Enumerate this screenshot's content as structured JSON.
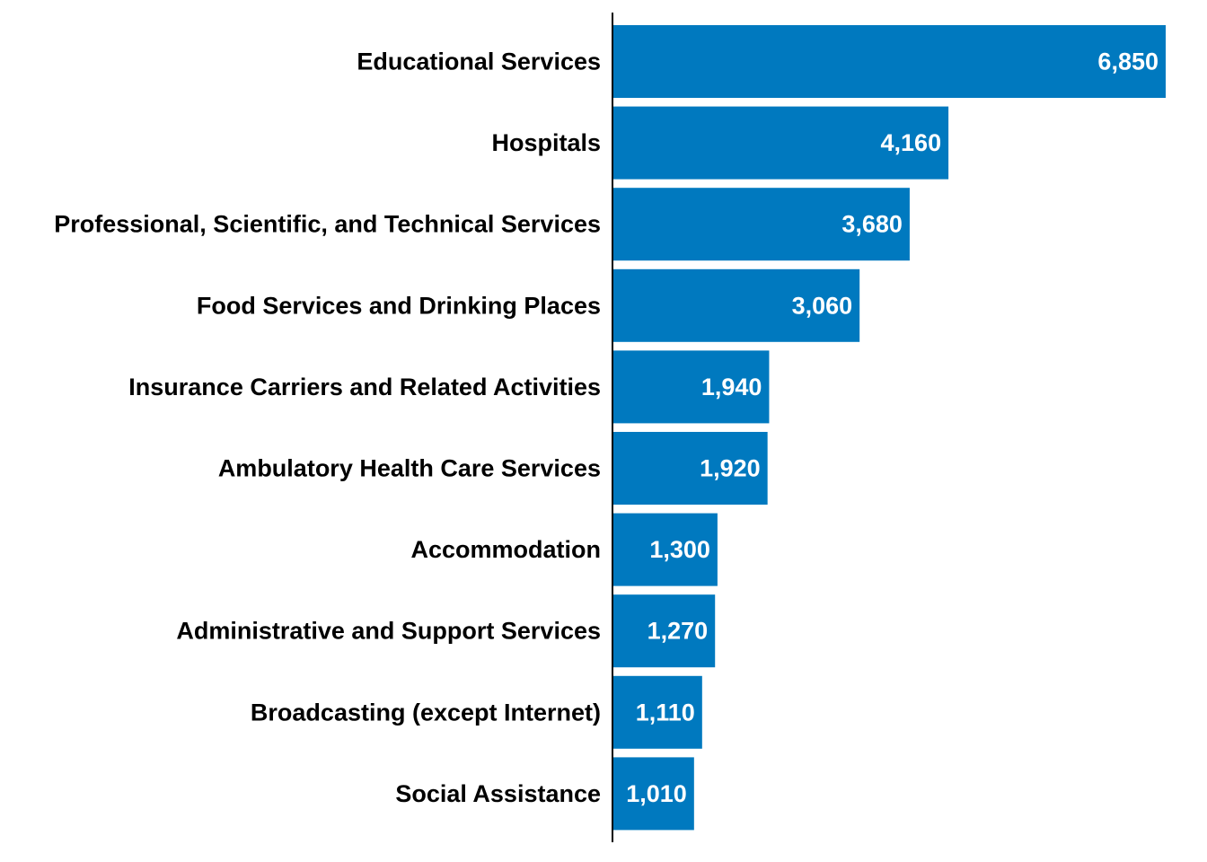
{
  "chart_data": {
    "type": "bar",
    "orientation": "horizontal",
    "categories": [
      "Educational Services",
      "Hospitals",
      "Professional, Scientific, and Technical Services",
      "Food Services and Drinking Places",
      "Insurance Carriers and Related Activities",
      "Ambulatory Health Care Services",
      "Accommodation",
      "Administrative and Support Services",
      "Broadcasting (except Internet)",
      "Social Assistance"
    ],
    "values": [
      6850,
      4160,
      3680,
      3060,
      1940,
      1920,
      1300,
      1270,
      1110,
      1010
    ],
    "value_labels": [
      "6,850",
      "4,160",
      "3,680",
      "3,060",
      "1,940",
      "1,920",
      "1,300",
      "1,270",
      "1,110",
      "1,010"
    ],
    "bar_color": "#0079BF",
    "axis_color": "#000000",
    "label_color": "#000000",
    "value_label_color": "#FFFFFF",
    "xlim": [
      0,
      6850
    ],
    "grid": false,
    "legend": "none"
  }
}
